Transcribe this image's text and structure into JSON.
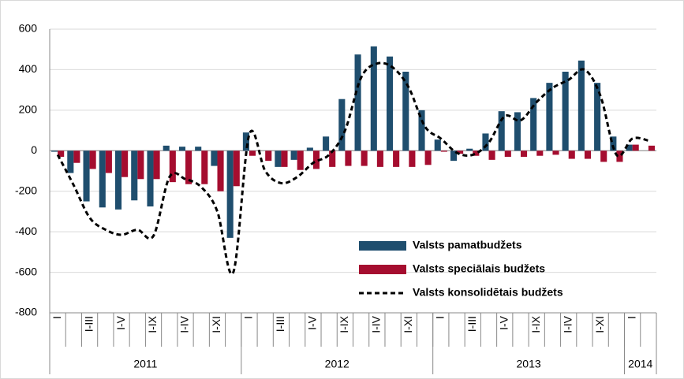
{
  "chart_data": {
    "type": "bar",
    "categories": [
      "I",
      null,
      "I-III",
      null,
      "I-V",
      null,
      "I-IX",
      null,
      "I-IV",
      null,
      "I-XI",
      null,
      "I",
      null,
      "I-III",
      null,
      "I-V",
      null,
      "I-IX",
      null,
      "I-IV",
      null,
      "I-XI",
      null,
      "I",
      null,
      "I-III",
      null,
      "I-V",
      null,
      "I-IX",
      null,
      "I-IV",
      null,
      "I-XI",
      null,
      "I",
      null
    ],
    "groups": [
      {
        "label": "2011",
        "count": 12
      },
      {
        "label": "2012",
        "count": 12
      },
      {
        "label": "2013",
        "count": 12
      },
      {
        "label": "2014",
        "count": 2
      }
    ],
    "series": [
      {
        "name": "Valsts pamatbudžets",
        "color": "#1f4e6e",
        "kind": "bar",
        "values": [
          -5,
          -110,
          -250,
          -280,
          -290,
          -245,
          -275,
          25,
          20,
          20,
          -75,
          -430,
          90,
          0,
          -80,
          -45,
          15,
          70,
          255,
          475,
          515,
          465,
          390,
          200,
          55,
          -50,
          10,
          85,
          195,
          190,
          260,
          335,
          390,
          445,
          335,
          70,
          30,
          0
        ]
      },
      {
        "name": "Valsts speciālais budžets",
        "color": "#a50d2f",
        "kind": "bar",
        "values": [
          -30,
          -60,
          -90,
          -110,
          -130,
          -140,
          -140,
          -155,
          -165,
          -165,
          -200,
          -175,
          -25,
          -50,
          -80,
          -95,
          -90,
          -80,
          -75,
          -75,
          -80,
          -80,
          -80,
          -70,
          -5,
          -15,
          -25,
          -45,
          -30,
          -30,
          -25,
          -20,
          -40,
          -40,
          -55,
          -55,
          30,
          25
        ]
      },
      {
        "name": "Valsts konsolidētais budžets",
        "color": "#000000",
        "kind": "line",
        "dash": true,
        "values": [
          -20,
          -170,
          -330,
          -390,
          -415,
          -390,
          -420,
          -130,
          -140,
          -180,
          -300,
          -600,
          80,
          -100,
          -160,
          -130,
          -60,
          -20,
          100,
          360,
          430,
          410,
          310,
          120,
          60,
          -10,
          -20,
          40,
          170,
          150,
          240,
          310,
          350,
          400,
          270,
          -20,
          60,
          50
        ]
      }
    ],
    "ylim": [
      -800,
      600
    ],
    "yticks": [
      -800,
      -600,
      -400,
      -200,
      0,
      200,
      400,
      600
    ],
    "grid": true,
    "legend": "center-right"
  }
}
